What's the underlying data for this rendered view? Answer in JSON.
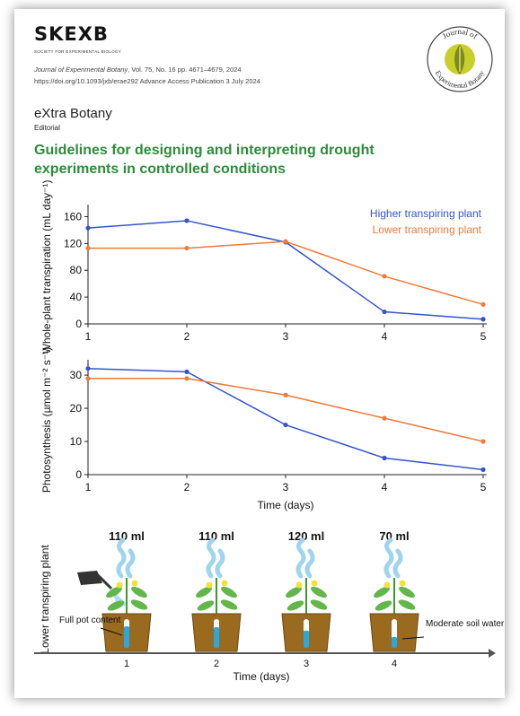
{
  "header": {
    "logo": "SKEXB",
    "society": "SOCIETY FOR EXPERIMENTAL BIOLOGY",
    "citation_journal": "Journal of Experimental Botany",
    "citation_rest": ", Vol. 75, No. 16 pp. 4671–4679, 2024",
    "doi": "https://doi.org/10.1093/jxb/erae292   Advance Access Publication 3 July 2024",
    "seal_line1": "Journal of",
    "seal_line2": "Experimental Botany"
  },
  "article": {
    "series": "eXtra Botany",
    "type": "Editorial",
    "title": "Guidelines for designing and interpreting drought experiments in controlled conditions"
  },
  "colors": {
    "higher": "#3355cc",
    "lower": "#ef7a3a",
    "title_green": "#2e8b3a"
  },
  "chart_data": [
    {
      "type": "line",
      "ylabel": "Whole-plant transpiration (mL day⁻¹)",
      "x": [
        1,
        2,
        3,
        4,
        5
      ],
      "xticks": [
        "1",
        "2",
        "3",
        "4",
        "5"
      ],
      "yticks": [
        "0",
        "40",
        "80",
        "120",
        "160"
      ],
      "ylim": [
        0,
        170
      ],
      "series": [
        {
          "name": "Higher transpiring plant",
          "values": [
            143,
            154,
            122,
            18,
            7
          ]
        },
        {
          "name": "Lower transpiring plant",
          "values": [
            113,
            113,
            123,
            71,
            29
          ]
        }
      ],
      "legend": "top-right",
      "grid": false
    },
    {
      "type": "line",
      "ylabel": "Photosynthesis (µmol m⁻² s⁻¹)",
      "xlabel": "Time (days)",
      "x": [
        1,
        2,
        3,
        4,
        5
      ],
      "xticks": [
        "1",
        "2",
        "3",
        "4",
        "5"
      ],
      "yticks": [
        "0",
        "10",
        "20",
        "30"
      ],
      "ylim": [
        0,
        33
      ],
      "series": [
        {
          "name": "Higher transpiring plant",
          "values": [
            32,
            31,
            15,
            5,
            1.5
          ]
        },
        {
          "name": "Lower transpiring plant",
          "values": [
            29,
            29,
            24,
            17,
            10
          ]
        }
      ],
      "grid": false
    }
  ],
  "illustration": {
    "row_label": "Lower transpiring plant",
    "volumes": [
      "110 ml",
      "110 ml",
      "120 ml",
      "70 ml"
    ],
    "days": [
      "1",
      "2",
      "3",
      "4"
    ],
    "soil_water_levels": [
      0.75,
      0.72,
      0.6,
      0.38
    ],
    "annotation_left": "Full pot content",
    "annotation_right": "Moderate soil water content",
    "xlabel": "Time (days)"
  }
}
